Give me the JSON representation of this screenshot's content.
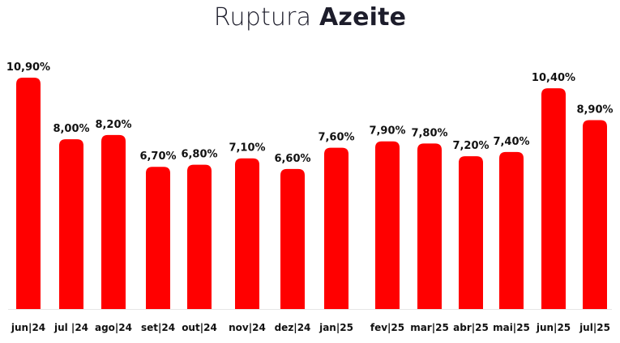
{
  "chart_data": {
    "type": "bar",
    "title_regular": "Ruptura",
    "title_bold": "Azeite",
    "categories": [
      "jun|24",
      "jul |24",
      "ago|24",
      "set|24",
      "out|24",
      "nov|24",
      "dez|24",
      "jan|25",
      "fev|25",
      "mar|25",
      "abr|25",
      "mai|25",
      "jun|25",
      "jul|25"
    ],
    "values": [
      10.9,
      8.0,
      8.2,
      6.7,
      6.8,
      7.1,
      6.6,
      7.6,
      7.9,
      7.8,
      7.2,
      7.4,
      10.4,
      8.9
    ],
    "value_labels": [
      "10,90%",
      "8,00%",
      "8,20%",
      "6,70%",
      "6,80%",
      "7,10%",
      "6,60%",
      "7,60%",
      "7,90%",
      "7,80%",
      "7,20%",
      "7,40%",
      "10,40%",
      "8,90%"
    ],
    "bar_color": "#ff0000",
    "ylim": [
      0,
      10.9
    ],
    "grid": false,
    "legend": "none"
  }
}
